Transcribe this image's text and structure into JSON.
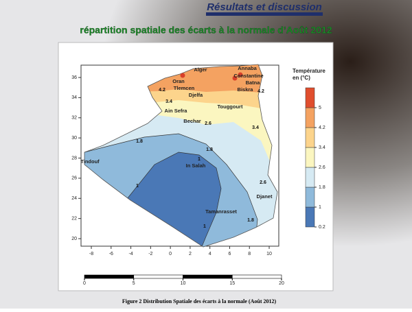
{
  "header": {
    "title": "Résultats et discussion",
    "subtitle": "répartition  spatiale des écarts à la normale d’Août 2012"
  },
  "map": {
    "xticks": [
      -8,
      -6,
      -4,
      -2,
      0,
      2,
      4,
      6,
      8,
      10
    ],
    "yticks": [
      20,
      22,
      24,
      26,
      28,
      30,
      32,
      34,
      36
    ],
    "legend": {
      "title": [
        "Température",
        "en (°C)"
      ],
      "levels": [
        0.2,
        1,
        1.8,
        2.6,
        3.4,
        4.2,
        5
      ],
      "colors": [
        "#4a78b6",
        "#8fbadb",
        "#d6eaf3",
        "#fbf6c0",
        "#fcd48c",
        "#f4a261",
        "#e04e2e"
      ]
    },
    "cities": [
      "Alger",
      "Annaba",
      "Constantine",
      "Oran",
      "Batna",
      "Tlemcen",
      "Biskra",
      "Djelfa",
      "Touggourt",
      "Ain Sefra",
      "Bechar",
      "Tindouf",
      "In Salah",
      "Djanet",
      "Tamanrasset"
    ],
    "contour_labels": [
      "4.2",
      "4.2",
      "3.4",
      "3.4",
      "2.6",
      "2.6",
      "1.8",
      "1.8",
      "1.8",
      "1",
      "1",
      "1"
    ]
  },
  "scale_bar": {
    "ticks": [
      0,
      5,
      10,
      15,
      20
    ]
  },
  "caption": "Figure 2 Distribution Spatiale  des écarts à la normale  (Août 2012)"
}
